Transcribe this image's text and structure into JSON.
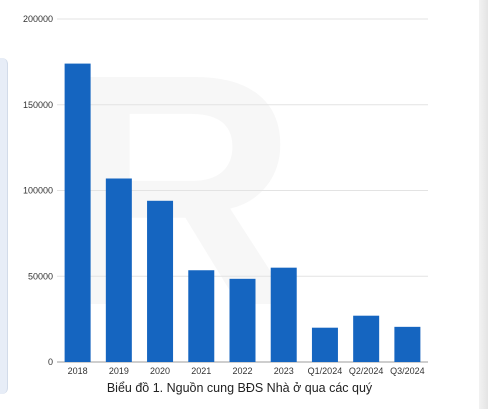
{
  "chart_data": {
    "type": "bar",
    "categories": [
      "2018",
      "2019",
      "2020",
      "2021",
      "2022",
      "2023",
      "Q1/2024",
      "Q2/2024",
      "Q3/2024"
    ],
    "values": [
      174000,
      107000,
      94000,
      53500,
      48500,
      55000,
      20000,
      27000,
      20500
    ],
    "ylim": [
      0,
      200000
    ],
    "yticks": [
      "0",
      "50000",
      "100000",
      "150000",
      "200000"
    ],
    "grid": true,
    "bar_color": "#1565c0",
    "caption": "Biểu đồ 1. Nguồn cung BĐS Nhà ở qua các quý"
  }
}
